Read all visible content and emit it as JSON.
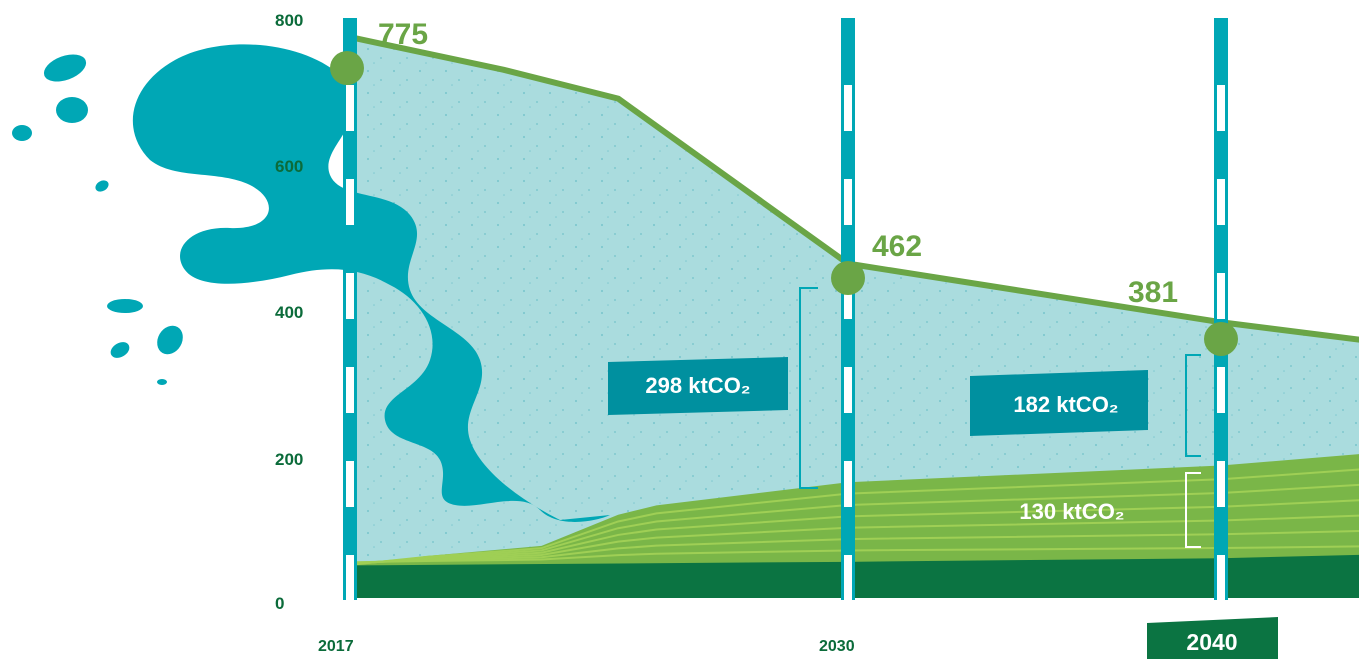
{
  "chart_data": {
    "type": "area",
    "y_ticks": [
      "800",
      "600",
      "400",
      "200",
      "0"
    ],
    "x_ticks": [
      "2017",
      "2030",
      "2040"
    ],
    "highlighted_x": "2040",
    "ylim": [
      0,
      800
    ],
    "series": [
      {
        "key": "total",
        "x": [
          2017,
          2021,
          2024,
          2030,
          2040,
          2044
        ],
        "values": [
          775,
          730,
          690,
          462,
          381,
          355
        ]
      },
      {
        "key": "green_upper",
        "x": [
          2017,
          2019,
          2022,
          2024,
          2025,
          2030,
          2040,
          2044
        ],
        "values": [
          45,
          58,
          72,
          115,
          128,
          160,
          183,
          200
        ]
      },
      {
        "key": "dark_green_base",
        "x": [
          2017,
          2030,
          2040,
          2044
        ],
        "values": [
          45,
          50,
          55,
          60
        ]
      }
    ],
    "point_labels": [
      {
        "x": 2017,
        "y": 775,
        "text": "775"
      },
      {
        "x": 2030,
        "y": 462,
        "text": "462"
      },
      {
        "x": 2040,
        "y": 381,
        "text": "381"
      }
    ],
    "annotations": [
      {
        "text": "298 ktCO₂",
        "from": 162,
        "to": 460
      },
      {
        "text": "182 ktCO₂",
        "from": 200,
        "to": 380
      },
      {
        "text": "130 ktCO₂",
        "from": 65,
        "to": 180
      }
    ],
    "colors": {
      "light_area": "#aadcde",
      "wave": "#00a7b5",
      "line": "#6aa546",
      "green_area": "#7ab648",
      "green_stripe": "#9fcf55",
      "dark_green": "#0b7442",
      "box": "#00909f",
      "tick_text": "#0b6b3a"
    }
  }
}
